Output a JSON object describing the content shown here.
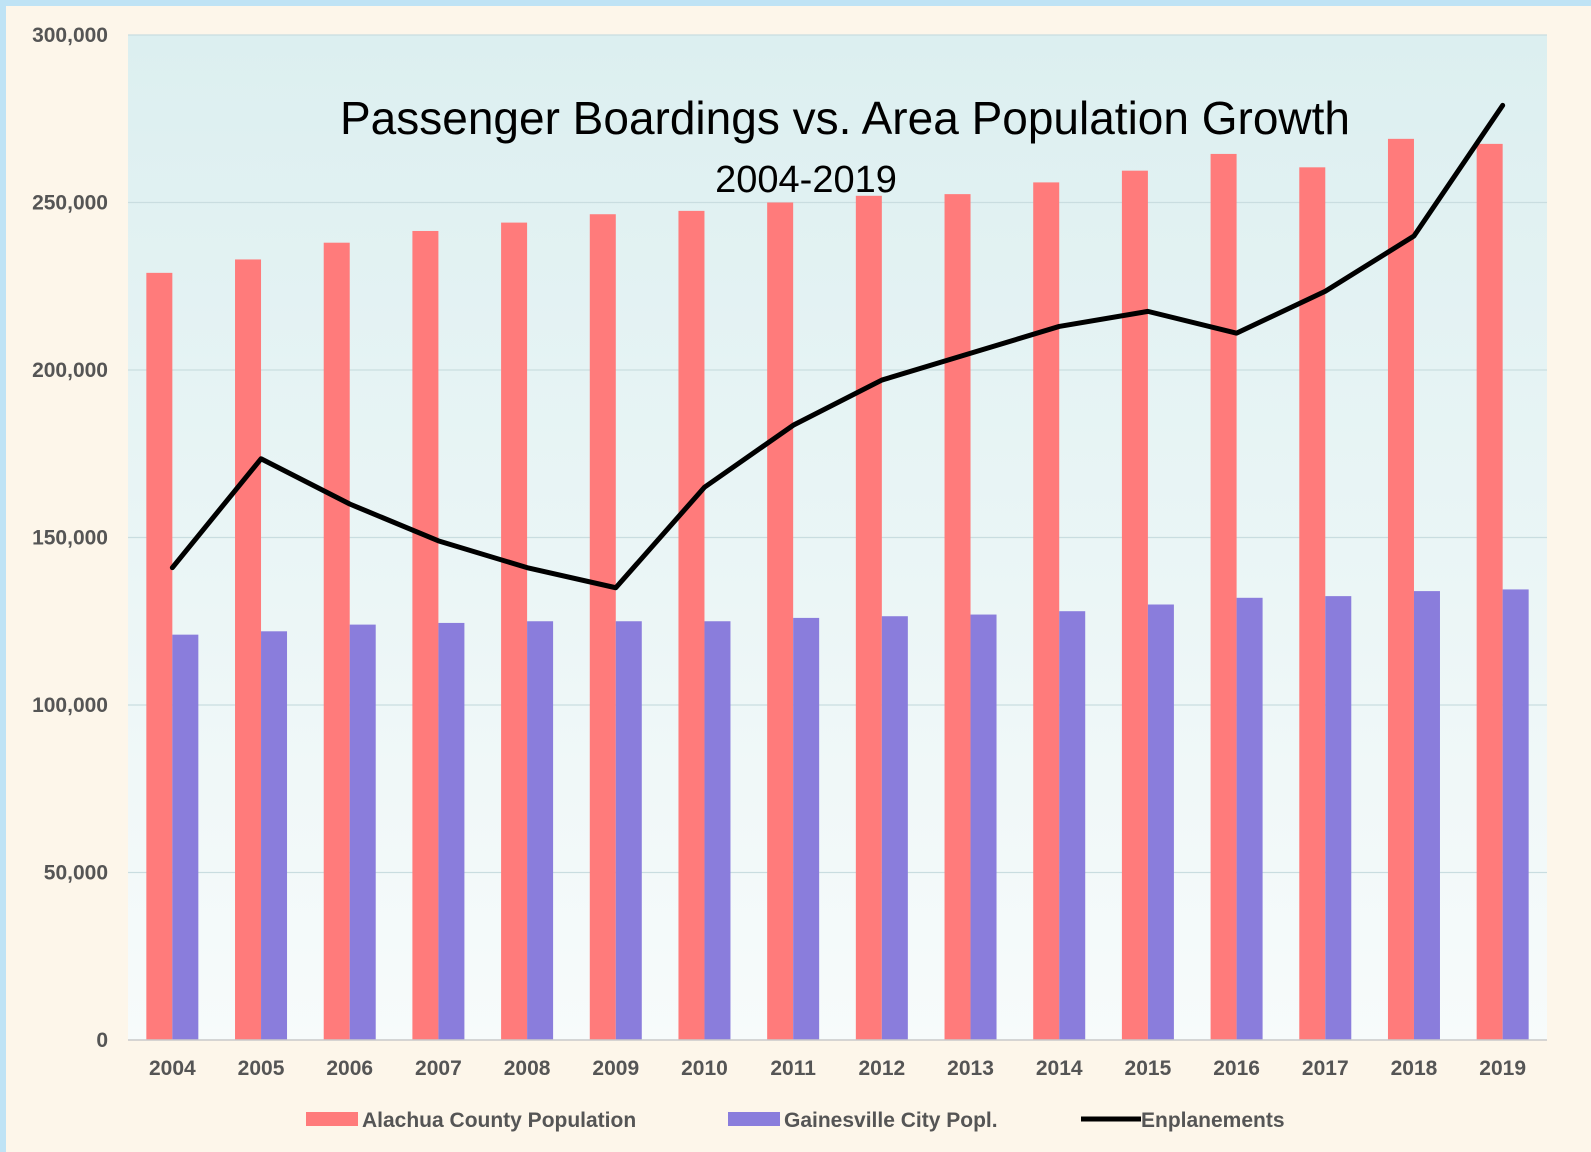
{
  "chart_data": {
    "type": "bar",
    "title": "Passenger Boardings vs. Area Population Growth",
    "subtitle": "2004-2019",
    "xlabel": "",
    "ylabel": "",
    "ylim": [
      0,
      300000
    ],
    "yticks": [
      "0",
      "50,000",
      "100,000",
      "150,000",
      "200,000",
      "250,000",
      "300,000"
    ],
    "grid": true,
    "legend_position": "bottom",
    "categories": [
      "2004",
      "2005",
      "2006",
      "2007",
      "2008",
      "2009",
      "2010",
      "2011",
      "2012",
      "2013",
      "2014",
      "2015",
      "2016",
      "2017",
      "2018",
      "2019"
    ],
    "series": [
      {
        "name": "Alachua County Population",
        "kind": "bar",
        "color": "#ff7b7b",
        "values": [
          229000,
          233000,
          238000,
          241500,
          244000,
          246500,
          247500,
          250000,
          252000,
          252500,
          256000,
          259500,
          264500,
          260500,
          269000,
          267500
        ]
      },
      {
        "name": "Gainesville City Popl.",
        "kind": "bar",
        "color": "#8a7ddc",
        "values": [
          121000,
          122000,
          124000,
          124500,
          125000,
          125000,
          125000,
          126000,
          126500,
          127000,
          128000,
          130000,
          132000,
          132500,
          134000,
          134500
        ]
      },
      {
        "name": "Enplanements",
        "kind": "line",
        "color": "#000000",
        "values": [
          141000,
          173500,
          160000,
          149000,
          141000,
          135000,
          165000,
          183500,
          197000,
          205000,
          213000,
          217500,
          211000,
          223500,
          240000,
          279000
        ]
      }
    ]
  }
}
